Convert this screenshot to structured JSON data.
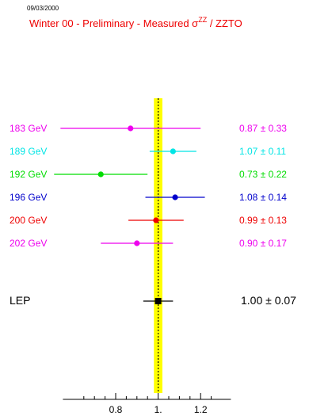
{
  "date": "09/03/2000",
  "chart_data": {
    "type": "scatter",
    "title_main": "Winter 00 - Preliminary - Measured σ",
    "title_sup": "ZZ",
    "title_tail": " / ZZTO",
    "xlim": [
      0.6,
      1.35
    ],
    "ticks": [
      {
        "v": 0.8,
        "label": "0.8"
      },
      {
        "v": 1.0,
        "label": "1."
      },
      {
        "v": 1.2,
        "label": "1.2"
      }
    ],
    "minor_ticks": [
      0.65,
      0.7,
      0.75,
      0.85,
      0.9,
      0.95,
      1.05,
      1.1,
      1.15,
      1.25
    ],
    "band": {
      "center": 1.0,
      "low": 0.98,
      "high": 1.02,
      "color": "#ffff00"
    },
    "pm": "±",
    "points": [
      {
        "label": "183 GeV",
        "value": 0.87,
        "error": 0.33,
        "value_text": "0.87",
        "error_text": "0.33",
        "color": "#ee00ee",
        "marker": "circle"
      },
      {
        "label": "189 GeV",
        "value": 1.07,
        "error": 0.11,
        "value_text": "1.07",
        "error_text": "0.11",
        "color": "#00e5e5",
        "marker": "circle"
      },
      {
        "label": "192 GeV",
        "value": 0.73,
        "error": 0.22,
        "value_text": "0.73",
        "error_text": "0.22",
        "color": "#00dd00",
        "marker": "circle"
      },
      {
        "label": "196 GeV",
        "value": 1.08,
        "error": 0.14,
        "value_text": "1.08",
        "error_text": "0.14",
        "color": "#0000cc",
        "marker": "circle"
      },
      {
        "label": "200 GeV",
        "value": 0.99,
        "error": 0.13,
        "value_text": "0.99",
        "error_text": "0.13",
        "color": "#ee0000",
        "marker": "circle"
      },
      {
        "label": "202 GeV",
        "value": 0.9,
        "error": 0.17,
        "value_text": "0.90",
        "error_text": "0.17",
        "color": "#ee00ee",
        "marker": "circle"
      },
      {
        "label": "LEP",
        "value": 1.0,
        "error": 0.07,
        "value_text": "1.00",
        "error_text": "0.07",
        "color": "#000000",
        "marker": "square"
      }
    ]
  }
}
